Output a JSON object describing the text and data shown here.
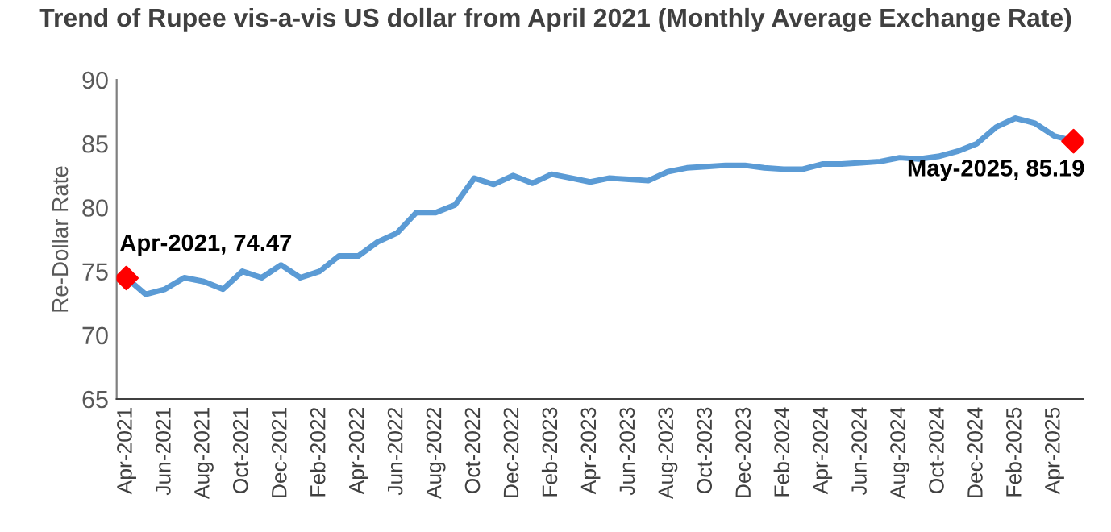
{
  "chart_data": {
    "type": "line",
    "title": "Trend of Rupee vis-a-vis US dollar from April 2021 (Monthly Average Exchange Rate)",
    "ylabel": "Re-Dollar Rate",
    "categories": [
      "Apr-2021",
      null,
      "Jun-2021",
      null,
      "Aug-2021",
      null,
      "Oct-2021",
      null,
      "Dec-2021",
      null,
      "Feb-2022",
      null,
      "Apr-2022",
      null,
      "Jun-2022",
      null,
      "Aug-2022",
      null,
      "Oct-2022",
      null,
      "Dec-2022",
      null,
      "Feb-2023",
      null,
      "Apr-2023",
      null,
      "Jun-2023",
      null,
      "Aug-2023",
      null,
      "Oct-2023",
      null,
      "Dec-2023",
      null,
      "Feb-2024",
      null,
      "Apr-2024",
      null,
      "Jun-2024",
      null,
      "Aug-2024",
      null,
      "Oct-2024",
      null,
      "Dec-2024",
      null,
      "Feb-2025",
      null,
      "Apr-2025",
      null
    ],
    "series": [
      {
        "color": "#5b9bd5",
        "values": [
          74.5,
          73.2,
          73.6,
          74.5,
          74.2,
          73.6,
          75.0,
          74.5,
          75.5,
          74.5,
          75.0,
          76.2,
          76.2,
          77.3,
          78.0,
          79.6,
          79.6,
          80.2,
          82.3,
          81.8,
          82.5,
          81.9,
          82.6,
          82.3,
          82.0,
          82.3,
          82.2,
          82.1,
          82.8,
          83.1,
          83.2,
          83.3,
          83.3,
          83.1,
          83.0,
          83.0,
          83.4,
          83.4,
          83.5,
          83.6,
          83.9,
          83.8,
          84.0,
          84.4,
          85.0,
          86.3,
          87.0,
          86.6,
          85.6,
          85.2
        ]
      },
      {
        "type": "scatter",
        "color": "#ff0000",
        "marker": "diamond",
        "values": [
          74.47,
          null,
          null,
          null,
          null,
          null,
          null,
          null,
          null,
          null,
          null,
          null,
          null,
          null,
          null,
          null,
          null,
          null,
          null,
          null,
          null,
          null,
          null,
          null,
          null,
          null,
          null,
          null,
          null,
          null,
          null,
          null,
          null,
          null,
          null,
          null,
          null,
          null,
          null,
          null,
          null,
          null,
          null,
          null,
          null,
          null,
          null,
          null,
          null,
          85.19
        ],
        "value_labels": [
          "Apr-2021, 74.47",
          null,
          null,
          null,
          null,
          null,
          null,
          null,
          null,
          null,
          null,
          null,
          null,
          null,
          null,
          null,
          null,
          null,
          null,
          null,
          null,
          null,
          null,
          null,
          null,
          null,
          null,
          null,
          null,
          null,
          null,
          null,
          null,
          null,
          null,
          null,
          null,
          null,
          null,
          null,
          null,
          null,
          null,
          null,
          null,
          null,
          null,
          null,
          null,
          "May-2025, 85.19"
        ]
      }
    ],
    "ylim": [
      65,
      90
    ],
    "yticks": [
      65,
      70,
      75,
      80,
      85,
      90
    ],
    "grid": false,
    "legend": false
  }
}
